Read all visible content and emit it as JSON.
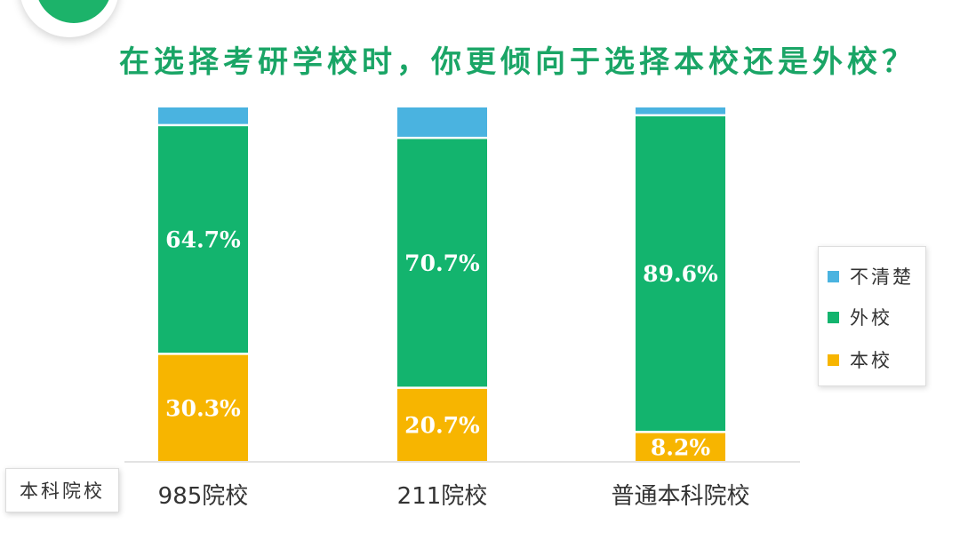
{
  "chart_data": {
    "type": "bar",
    "stacked": true,
    "orientation": "vertical",
    "title": "在选择考研学校时，你更倾向于选择本校还是外校？",
    "xlabel": "本科院校",
    "ylabel": "",
    "ylim": [
      0,
      100
    ],
    "grid": false,
    "legend_position": "right",
    "categories": [
      "985院校",
      "211院校",
      "普通本科院校"
    ],
    "series": [
      {
        "name": "本校",
        "color": "#f7b500",
        "values": [
          30.3,
          20.7,
          8.2
        ],
        "labels": [
          "30.3%",
          "20.7%",
          "8.2%"
        ]
      },
      {
        "name": "外校",
        "color": "#13b46e",
        "values": [
          64.7,
          70.7,
          89.6
        ],
        "labels": [
          "64.7%",
          "70.7%",
          "89.6%"
        ]
      },
      {
        "name": "不清楚",
        "color": "#4ab3e0",
        "values": [
          5.0,
          8.6,
          2.2
        ],
        "labels": [
          "",
          "",
          ""
        ]
      }
    ],
    "legend_order": [
      "不清楚",
      "外校",
      "本校"
    ]
  }
}
